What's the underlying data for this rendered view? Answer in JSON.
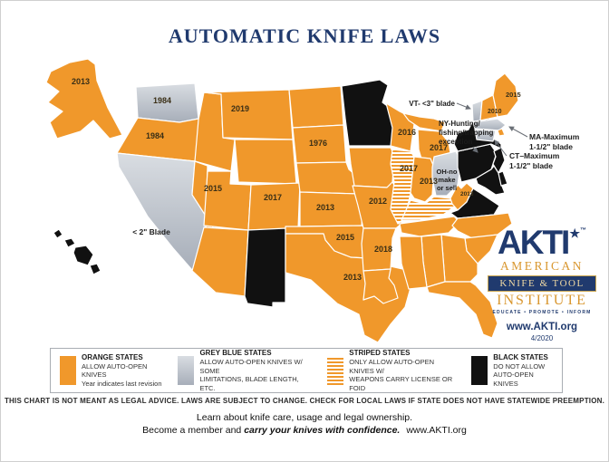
{
  "title": "AUTOMATIC KNIFE LAWS",
  "colors": {
    "orange": "#F0982B",
    "grey_blue_light": "#D9DDE2",
    "grey_blue_dark": "#A7AEB9",
    "black": "#111111",
    "navy": "#203A6E"
  },
  "map": {
    "states": {
      "AK": {
        "name": "Alaska",
        "category": "orange",
        "year": "2013"
      },
      "HI": {
        "name": "Hawaii",
        "category": "black"
      },
      "WA": {
        "name": "Washington",
        "category": "grey_blue",
        "year": "1984"
      },
      "OR": {
        "name": "Oregon",
        "category": "orange",
        "year": "1984"
      },
      "CA": {
        "name": "California",
        "category": "grey_blue"
      },
      "ID": {
        "name": "Idaho",
        "category": "orange"
      },
      "MT": {
        "name": "Montana",
        "category": "orange",
        "year": "2019"
      },
      "WY": {
        "name": "Wyoming",
        "category": "orange"
      },
      "NV": {
        "name": "Nevada",
        "category": "orange",
        "year": "2015"
      },
      "UT": {
        "name": "Utah",
        "category": "orange"
      },
      "AZ": {
        "name": "Arizona",
        "category": "orange"
      },
      "CO": {
        "name": "Colorado",
        "category": "orange",
        "year": "2017"
      },
      "NM": {
        "name": "New Mexico",
        "category": "black"
      },
      "ND": {
        "name": "North Dakota",
        "category": "orange"
      },
      "SD": {
        "name": "South Dakota",
        "category": "orange",
        "year": "1976"
      },
      "NE": {
        "name": "Nebraska",
        "category": "orange"
      },
      "KS": {
        "name": "Kansas",
        "category": "orange",
        "year": "2013"
      },
      "OK": {
        "name": "Oklahoma",
        "category": "orange",
        "year": "2015"
      },
      "TX": {
        "name": "Texas",
        "category": "orange",
        "year": "2013"
      },
      "MN": {
        "name": "Minnesota",
        "category": "black"
      },
      "IA": {
        "name": "Iowa",
        "category": "orange"
      },
      "MO": {
        "name": "Missouri",
        "category": "orange",
        "year": "2012"
      },
      "AR": {
        "name": "Arkansas",
        "category": "orange",
        "year": "2018"
      },
      "LA": {
        "name": "Louisiana",
        "category": "orange"
      },
      "WI": {
        "name": "Wisconsin",
        "category": "orange",
        "year": "2016"
      },
      "MI": {
        "name": "Michigan",
        "category": "orange",
        "year": "2017"
      },
      "IL": {
        "name": "Illinois",
        "category": "striped",
        "year": "2017"
      },
      "IN": {
        "name": "Indiana",
        "category": "orange",
        "year": "2013"
      },
      "OH": {
        "name": "Ohio",
        "category": "grey_blue"
      },
      "KY": {
        "name": "Kentucky",
        "category": "striped"
      },
      "TN": {
        "name": "Tennessee",
        "category": "orange"
      },
      "WV": {
        "name": "West Virginia",
        "category": "orange",
        "year": "2013"
      },
      "VA": {
        "name": "Virginia",
        "category": "black"
      },
      "NC": {
        "name": "North Carolina",
        "category": "orange"
      },
      "SC": {
        "name": "South Carolina",
        "category": "orange"
      },
      "GA": {
        "name": "Georgia",
        "category": "orange"
      },
      "AL": {
        "name": "Alabama",
        "category": "orange"
      },
      "MS": {
        "name": "Mississippi",
        "category": "orange"
      },
      "FL": {
        "name": "Florida",
        "category": "orange"
      },
      "PA": {
        "name": "Pennsylvania",
        "category": "black"
      },
      "NY": {
        "name": "New York",
        "category": "black"
      },
      "NJ": {
        "name": "New Jersey",
        "category": "black"
      },
      "MD": {
        "name": "Maryland",
        "category": "black"
      },
      "DE": {
        "name": "Delaware",
        "category": "black"
      },
      "VT": {
        "name": "Vermont",
        "category": "grey_blue"
      },
      "NH": {
        "name": "New Hampshire",
        "category": "orange",
        "year": "2010"
      },
      "ME": {
        "name": "Maine",
        "category": "orange",
        "year": "2015"
      },
      "MA": {
        "name": "Massachusetts",
        "category": "grey_blue"
      },
      "RI": {
        "name": "Rhode Island",
        "category": "orange"
      },
      "CT": {
        "name": "Connecticut",
        "category": "grey_blue"
      }
    },
    "notes": {
      "CA": "< 2\" Blade",
      "VT": "VT- <3\" blade",
      "NY": [
        "NY-Hunting/",
        "fishing/trapping",
        "exception"
      ],
      "MA": [
        "MA-Maximum",
        "1-1/2\" blade"
      ],
      "CT": [
        "CT–Maximum",
        "1-1/2\" blade"
      ],
      "OH": [
        "OH-no",
        "make",
        "or sell"
      ]
    }
  },
  "legend": {
    "items": [
      {
        "key": "orange",
        "title": "ORANGE STATES",
        "lines": [
          "ALLOW AUTO-OPEN KNIVES",
          "Year indicates last revision"
        ]
      },
      {
        "key": "grey_blue",
        "title": "GREY BLUE STATES",
        "lines": [
          "ALLOW AUTO-OPEN KNIVES W/ SOME",
          "LIMITATIONS, BLADE LENGTH, ETC."
        ]
      },
      {
        "key": "striped",
        "title": "STRIPED STATES",
        "lines": [
          "ONLY ALLOW AUTO-OPEN KNIVES W/",
          "WEAPONS CARRY LICENSE OR FOID"
        ]
      },
      {
        "key": "black",
        "title": "BLACK STATES",
        "lines": [
          "DO NOT ALLOW",
          "AUTO-OPEN KNIVES"
        ]
      }
    ]
  },
  "disclaimer": "THIS CHART IS NOT MEANT AS LEGAL ADVICE. LAWS ARE SUBJECT TO CHANGE. CHECK FOR LOCAL LAWS IF STATE DOES NOT HAVE STATEWIDE PREEMPTION.",
  "footer": {
    "line1": "Learn about knife care, usage and legal ownership.",
    "line2_prefix": "Become a member and ",
    "line2_bold": "carry your knives with confidence.",
    "line2_suffix": "www.AKTI.org"
  },
  "logo": {
    "acronym": "AKTI",
    "star": "★",
    "tm": "™",
    "line1": "AMERICAN",
    "line2": "KNIFE & TOOL",
    "line3": "INSTITUTE",
    "tagline": "EDUCATE • PROMOTE • INFORM",
    "url": "www.AKTI.org",
    "date": "4/2020"
  }
}
